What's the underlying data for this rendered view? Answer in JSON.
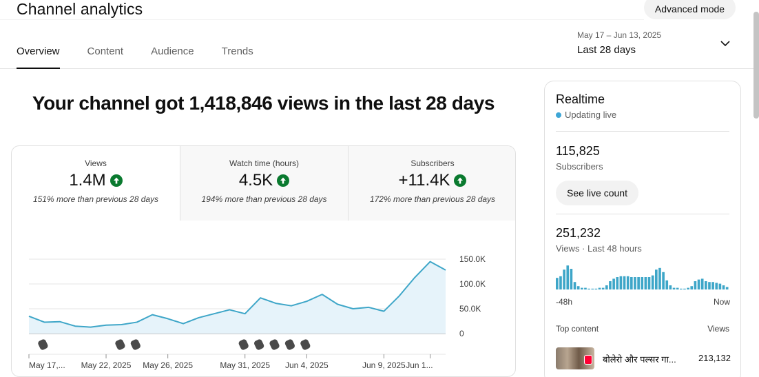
{
  "header": {
    "title": "Channel analytics",
    "advanced_mode_label": "Advanced mode",
    "tabs": [
      "Overview",
      "Content",
      "Audience",
      "Trends"
    ],
    "active_tab": "Overview",
    "date_range": {
      "dates": "May 17 – Jun 13, 2025",
      "label": "Last 28 days"
    }
  },
  "headline": "Your channel got 1,418,846 views in the last 28 days",
  "metrics": [
    {
      "label": "Views",
      "value": "1.4M",
      "note": "151% more than previous 28 days"
    },
    {
      "label": "Watch time (hours)",
      "value": "4.5K",
      "note": "194% more than previous 28 days"
    },
    {
      "label": "Subscribers",
      "value": "+11.4K",
      "note": "172% more than previous 28 days"
    }
  ],
  "chart_data": {
    "type": "area",
    "title": "Views",
    "x": [
      "May 17",
      "May 18",
      "May 19",
      "May 20",
      "May 21",
      "May 22",
      "May 23",
      "May 24",
      "May 25",
      "May 26",
      "May 27",
      "May 28",
      "May 29",
      "May 30",
      "May 31",
      "Jun 1",
      "Jun 2",
      "Jun 3",
      "Jun 4",
      "Jun 5",
      "Jun 6",
      "Jun 7",
      "Jun 8",
      "Jun 9",
      "Jun 10",
      "Jun 11",
      "Jun 12",
      "Jun 13"
    ],
    "series": [
      {
        "name": "Views",
        "values": [
          35000,
          23000,
          24000,
          15000,
          13000,
          17000,
          18000,
          23000,
          38000,
          30000,
          20000,
          32000,
          40000,
          48000,
          40000,
          72000,
          61000,
          56000,
          65000,
          79000,
          59000,
          50000,
          53000,
          45000,
          76000,
          113000,
          145000,
          128000
        ]
      }
    ],
    "y_ticks": [
      "150.0K",
      "100.0K",
      "50.0K",
      "0"
    ],
    "ylim": [
      0,
      150000
    ],
    "x_tick_labels": [
      "May 17,...",
      "May 22, 2025",
      "May 26, 2025",
      "May 31, 2025",
      "Jun 4, 2025",
      "Jun 9, 2025",
      "Jun 1..."
    ],
    "x_tick_indices": [
      0,
      5,
      9,
      14,
      18,
      23,
      26
    ],
    "shorts_marker_indices": [
      1,
      6,
      7,
      14,
      15,
      16,
      17,
      18
    ],
    "grid": true,
    "colors": {
      "line": "#3ea6c8",
      "fill": "#e6f3fa"
    }
  },
  "realtime": {
    "title": "Realtime",
    "status": "Updating live",
    "subscribers_value": "115,825",
    "subscribers_label": "Subscribers",
    "live_count_label": "See live count",
    "views_value": "251,232",
    "views_label": "Views · Last 48 hours",
    "axis_start": "-48h",
    "axis_end": "Now",
    "bars": [
      14,
      16,
      24,
      29,
      25,
      9,
      4,
      2,
      2,
      1,
      1,
      1,
      2,
      2,
      5,
      10,
      13,
      15,
      16,
      16,
      16,
      15,
      15,
      15,
      15,
      15,
      15,
      17,
      24,
      26,
      21,
      11,
      5,
      2,
      2,
      1,
      1,
      2,
      4,
      10,
      12,
      13,
      10,
      9,
      9,
      8,
      7,
      5,
      3
    ],
    "top_content_label": "Top content",
    "top_views_label": "Views",
    "top_content": [
      {
        "title": "बोलेरो और पल्सर गा...",
        "views": "213,132"
      }
    ]
  }
}
